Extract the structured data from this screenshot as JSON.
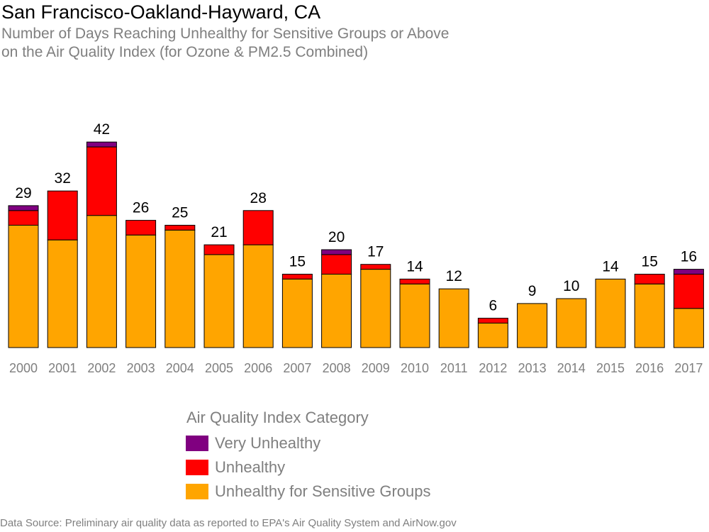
{
  "chart_data": {
    "type": "bar",
    "stacked": true,
    "title": "San Francisco-Oakland-Hayward, CA",
    "subtitle_line1": "Number of Days Reaching Unhealthy for Sensitive Groups or Above",
    "subtitle_line2": "on the Air Quality Index (for Ozone & PM2.5 Combined)",
    "categories": [
      "2000",
      "2001",
      "2002",
      "2003",
      "2004",
      "2005",
      "2006",
      "2007",
      "2008",
      "2009",
      "2010",
      "2011",
      "2012",
      "2013",
      "2014",
      "2015",
      "2016",
      "2017"
    ],
    "series": [
      {
        "name": "Unhealthy for Sensitive Groups",
        "color": "#FFA500",
        "values": [
          25,
          22,
          27,
          23,
          24,
          19,
          21,
          14,
          15,
          16,
          13,
          12,
          5,
          9,
          10,
          14,
          13,
          8
        ]
      },
      {
        "name": "Unhealthy",
        "color": "#FF0000",
        "values": [
          3,
          10,
          14,
          3,
          1,
          2,
          7,
          1,
          4,
          1,
          1,
          0,
          1,
          0,
          0,
          0,
          2,
          7
        ]
      },
      {
        "name": "Very Unhealthy",
        "color": "#800080",
        "values": [
          1,
          0,
          1,
          0,
          0,
          0,
          0,
          0,
          1,
          0,
          0,
          0,
          0,
          0,
          0,
          0,
          0,
          1
        ]
      }
    ],
    "totals": [
      29,
      32,
      42,
      26,
      25,
      21,
      28,
      15,
      20,
      17,
      14,
      12,
      6,
      9,
      10,
      14,
      15,
      16
    ],
    "ylim": [
      0,
      42
    ],
    "grid": false,
    "legend_title": "Air Quality Index Category",
    "legend_position": "bottom"
  },
  "source": "Data Source: Preliminary air quality data as reported to EPA's Air Quality System and AirNow.gov"
}
